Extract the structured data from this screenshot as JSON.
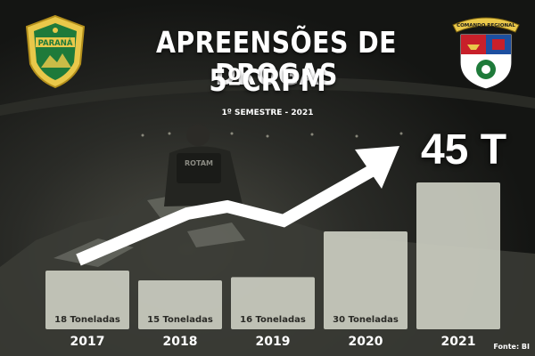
{
  "header": {
    "title": "APREENSÕES DE DROGAS",
    "subtitle": "5ºCRPM",
    "period": "1º SEMESTRE -  2021"
  },
  "left_logo": {
    "icon": "parana-police-crest-icon",
    "text": "PARANÁ",
    "color_gold": "#e9c84a",
    "color_green": "#1e7a3a"
  },
  "right_logo": {
    "icon": "regional-command-shield-icon",
    "text": "COMANDO REGIONAL",
    "color_red": "#c8202a",
    "color_blue": "#1d4fa0"
  },
  "highlight_label": "45 T",
  "source": "Fonte: BI",
  "colors": {
    "bar_fill": "#c9cbbf",
    "arrow": "#ffffff"
  },
  "chart_data": {
    "type": "bar",
    "categories": [
      "2017",
      "2018",
      "2019",
      "2020",
      "2021"
    ],
    "values": [
      18,
      15,
      16,
      30,
      45
    ],
    "data_labels": [
      "18 Toneladas",
      "15 Toneladas",
      "16 Toneladas",
      "30 Toneladas",
      ""
    ],
    "unit": "Toneladas",
    "title": "APREENSÕES DE DROGAS",
    "xlabel": "",
    "ylabel": "",
    "ylim": [
      0,
      45
    ],
    "grid": false,
    "legend": "none",
    "annotation": "45 T"
  }
}
